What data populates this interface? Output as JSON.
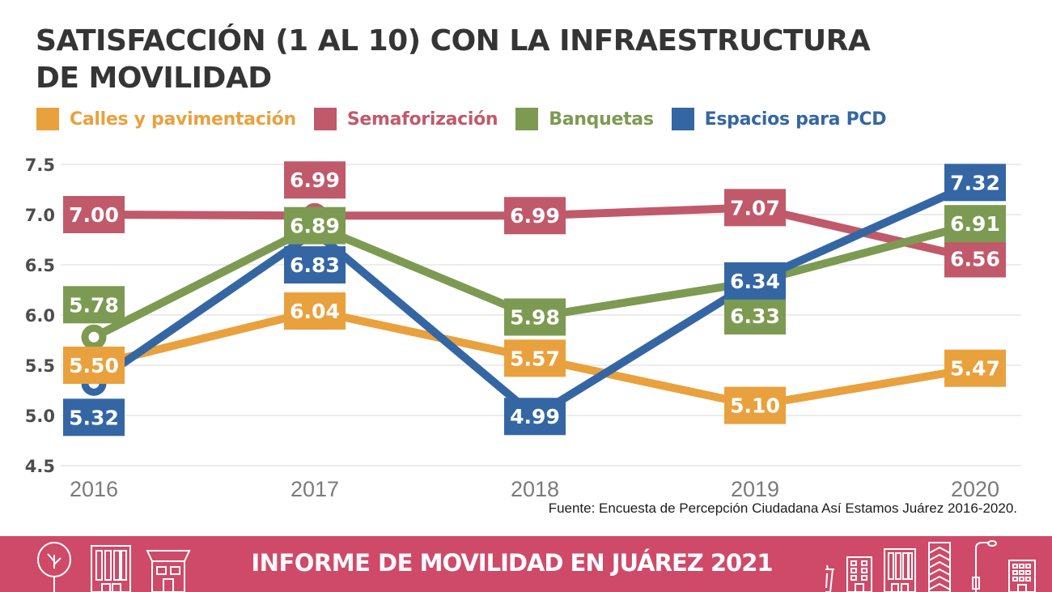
{
  "title": {
    "line1": "SATISFACCIÓN (1 AL 10) CON LA INFRAESTRUCTURA",
    "line2": "DE MOVILIDAD"
  },
  "legend": [
    {
      "label": "Calles y pavimentación",
      "color": "#E9A13E"
    },
    {
      "label": "Semaforización",
      "color": "#C05A6A"
    },
    {
      "label": "Banquetas",
      "color": "#7D9A52"
    },
    {
      "label": "Espacios para PCD",
      "color": "#3566A4"
    }
  ],
  "chart_data": {
    "type": "line",
    "x": [
      "2016",
      "2017",
      "2018",
      "2019",
      "2020"
    ],
    "series": [
      {
        "name": "Calles y pavimentación",
        "color": "#E9A13E",
        "values": [
          5.5,
          6.04,
          5.57,
          5.1,
          5.47
        ]
      },
      {
        "name": "Semaforización",
        "color": "#C05A6A",
        "values": [
          7.0,
          6.99,
          6.99,
          7.07,
          6.56
        ]
      },
      {
        "name": "Banquetas",
        "color": "#7D9A52",
        "values": [
          5.78,
          6.89,
          5.98,
          6.33,
          6.91
        ]
      },
      {
        "name": "Espacios para PCD",
        "color": "#3566A4",
        "values": [
          5.32,
          6.83,
          4.99,
          6.34,
          7.32
        ]
      }
    ],
    "title": "SATISFACCIÓN (1 AL 10) CON LA INFRAESTRUCTURA DE MOVILIDAD",
    "xlabel": "",
    "ylabel": "",
    "ylim": [
      4.5,
      7.5
    ],
    "ytick_step": 0.5,
    "grid": true,
    "legend_position": "top",
    "point_labels": "two-decimal boxes colored per series",
    "grid_color": "#ECECEC",
    "ytick_color": "#4D4D4D",
    "xtick_color": "#7B7B7B"
  },
  "source": "Fuente: Encuesta de Percepción Ciudadana Así Estamos Juárez 2016-2020.",
  "footer": {
    "prefix": "INFORME DE",
    "emphasis": "MOVILIDAD EN JUÁREZ 2021",
    "background": "#CE4A68",
    "icons_left": [
      "tree-icon",
      "building-icon",
      "house-icon"
    ],
    "icons_right": [
      "trash-icon",
      "small-building-icon",
      "tall-building-icon",
      "skyscraper-icon",
      "streetlamp-icon",
      "apartment-icon"
    ]
  }
}
